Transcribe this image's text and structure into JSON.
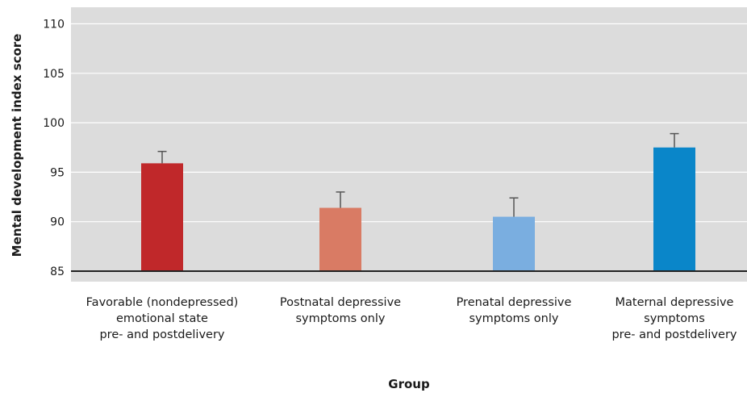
{
  "chart_data": {
    "type": "bar",
    "title": "",
    "xlabel": "Group",
    "ylabel": "Mental development index score",
    "ylim": [
      85,
      111.5
    ],
    "yticks": [
      85,
      90,
      95,
      100,
      105,
      110
    ],
    "grid": true,
    "categories": [
      [
        "Favorable (nondepressed)",
        "emotional state",
        "pre- and postdelivery"
      ],
      [
        "Postnatal depressive",
        "symptoms only"
      ],
      [
        "Prenatal depressive",
        "symptoms only"
      ],
      [
        "Maternal depressive",
        "symptoms",
        "pre- and postdelivery"
      ]
    ],
    "values": [
      95.9,
      91.4,
      90.5,
      97.5
    ],
    "error_upper": [
      1.2,
      1.6,
      1.9,
      1.4
    ],
    "colors": [
      "#c0282a",
      "#d97b64",
      "#7aaee0",
      "#0a86c9"
    ],
    "plot_background": "#dcdcdc",
    "gridline_color": "#ffffff",
    "baseline_color": "#222222"
  }
}
